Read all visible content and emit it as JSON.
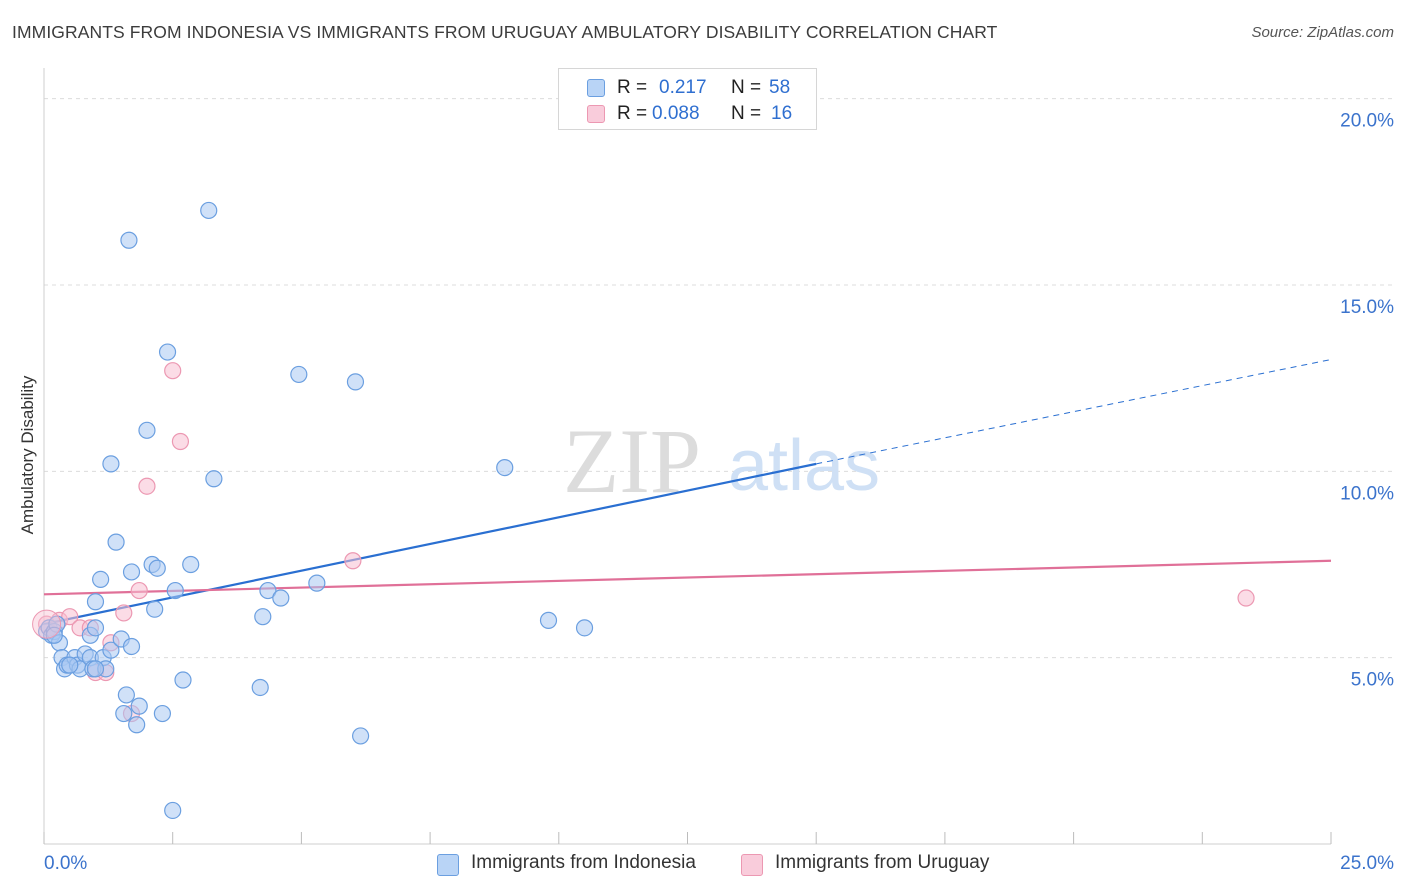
{
  "title": "IMMIGRANTS FROM INDONESIA VS IMMIGRANTS FROM URUGUAY AMBULATORY DISABILITY CORRELATION CHART",
  "source": "Source: ZipAtlas.com",
  "watermark": {
    "zip": "ZIP",
    "atlas": "atlas"
  },
  "legend": {
    "rows": [
      {
        "r_label": "R =",
        "r_value": "0.217",
        "n_label": "N =",
        "n_value": "58"
      },
      {
        "r_label": "R =",
        "r_value": "0.088",
        "n_label": "N =",
        "n_value": "16"
      }
    ]
  },
  "colors": {
    "indonesia_fill": "#aac9f3",
    "indonesia_stroke": "#6b9fe0",
    "indonesia_line": "#2a6fd1",
    "uruguay_fill": "#f8c0d2",
    "uruguay_stroke": "#ec98b2",
    "uruguay_line": "#e07098",
    "axis_text": "#3b73cc",
    "grid": "#dcdcdc"
  },
  "chart_data": {
    "type": "scatter",
    "title": "IMMIGRANTS FROM INDONESIA VS IMMIGRANTS FROM URUGUAY AMBULATORY DISABILITY CORRELATION CHART",
    "xlabel": "",
    "ylabel": "Ambulatory Disability",
    "xlim": [
      0,
      25
    ],
    "ylim": [
      0,
      20.5
    ],
    "x_tick_labels": [
      "0.0%",
      "25.0%"
    ],
    "y_ticks": [
      5,
      10,
      15,
      20
    ],
    "y_tick_labels": [
      "5.0%",
      "10.0%",
      "15.0%",
      "20.0%"
    ],
    "grid": true,
    "series": [
      {
        "name": "Immigrants from Indonesia",
        "r": 0.217,
        "n": 58,
        "trend": {
          "x0": 0,
          "y0": 5.9,
          "x1": 15,
          "y1": 10.2,
          "dashed_to_x": 25,
          "dashed_to_y": 13.0
        },
        "points": [
          [
            0.05,
            5.7
          ],
          [
            0.1,
            5.8
          ],
          [
            0.15,
            5.6
          ],
          [
            0.2,
            5.7
          ],
          [
            0.3,
            5.4
          ],
          [
            0.25,
            5.9
          ],
          [
            0.35,
            5.0
          ],
          [
            0.4,
            4.7
          ],
          [
            0.45,
            4.8
          ],
          [
            0.6,
            5.0
          ],
          [
            0.65,
            4.8
          ],
          [
            0.7,
            4.7
          ],
          [
            0.8,
            5.1
          ],
          [
            0.9,
            5.0
          ],
          [
            0.95,
            4.7
          ],
          [
            0.9,
            5.6
          ],
          [
            1.0,
            5.8
          ],
          [
            1.0,
            6.5
          ],
          [
            1.1,
            7.1
          ],
          [
            1.15,
            5.0
          ],
          [
            1.2,
            4.7
          ],
          [
            1.3,
            5.2
          ],
          [
            1.4,
            8.1
          ],
          [
            1.5,
            5.5
          ],
          [
            1.55,
            3.5
          ],
          [
            1.6,
            4.0
          ],
          [
            1.7,
            5.3
          ],
          [
            1.7,
            7.3
          ],
          [
            1.8,
            3.2
          ],
          [
            1.85,
            3.7
          ],
          [
            2.0,
            11.1
          ],
          [
            2.1,
            7.5
          ],
          [
            2.15,
            6.3
          ],
          [
            2.2,
            7.4
          ],
          [
            2.3,
            3.5
          ],
          [
            2.4,
            13.2
          ],
          [
            2.5,
            0.9
          ],
          [
            2.55,
            6.8
          ],
          [
            2.7,
            4.4
          ],
          [
            2.85,
            7.5
          ],
          [
            3.2,
            17.0
          ],
          [
            3.3,
            9.8
          ],
          [
            4.2,
            4.2
          ],
          [
            4.25,
            6.1
          ],
          [
            4.35,
            6.8
          ],
          [
            4.6,
            6.6
          ],
          [
            4.95,
            12.6
          ],
          [
            5.3,
            7.0
          ],
          [
            6.05,
            12.4
          ],
          [
            6.15,
            2.9
          ],
          [
            8.95,
            10.1
          ],
          [
            9.8,
            6.0
          ],
          [
            10.5,
            5.8
          ],
          [
            1.65,
            16.2
          ],
          [
            1.3,
            10.2
          ],
          [
            1.0,
            4.7
          ],
          [
            0.5,
            4.8
          ],
          [
            0.2,
            5.6
          ]
        ]
      },
      {
        "name": "Immigrants from Uruguay",
        "r": 0.088,
        "n": 16,
        "trend": {
          "x0": 0,
          "y0": 6.7,
          "x1": 25,
          "y1": 7.6
        },
        "points": [
          [
            0.05,
            5.9
          ],
          [
            0.3,
            6.0
          ],
          [
            0.5,
            6.1
          ],
          [
            0.7,
            5.8
          ],
          [
            0.9,
            5.8
          ],
          [
            1.0,
            4.6
          ],
          [
            1.2,
            4.6
          ],
          [
            1.3,
            5.4
          ],
          [
            1.55,
            6.2
          ],
          [
            1.7,
            3.5
          ],
          [
            1.85,
            6.8
          ],
          [
            2.0,
            9.6
          ],
          [
            2.5,
            12.7
          ],
          [
            2.65,
            10.8
          ],
          [
            6.0,
            7.6
          ],
          [
            23.35,
            6.6
          ]
        ]
      }
    ]
  },
  "bottom_legend": [
    {
      "label": "Immigrants from Indonesia"
    },
    {
      "label": "Immigrants from Uruguay"
    }
  ]
}
